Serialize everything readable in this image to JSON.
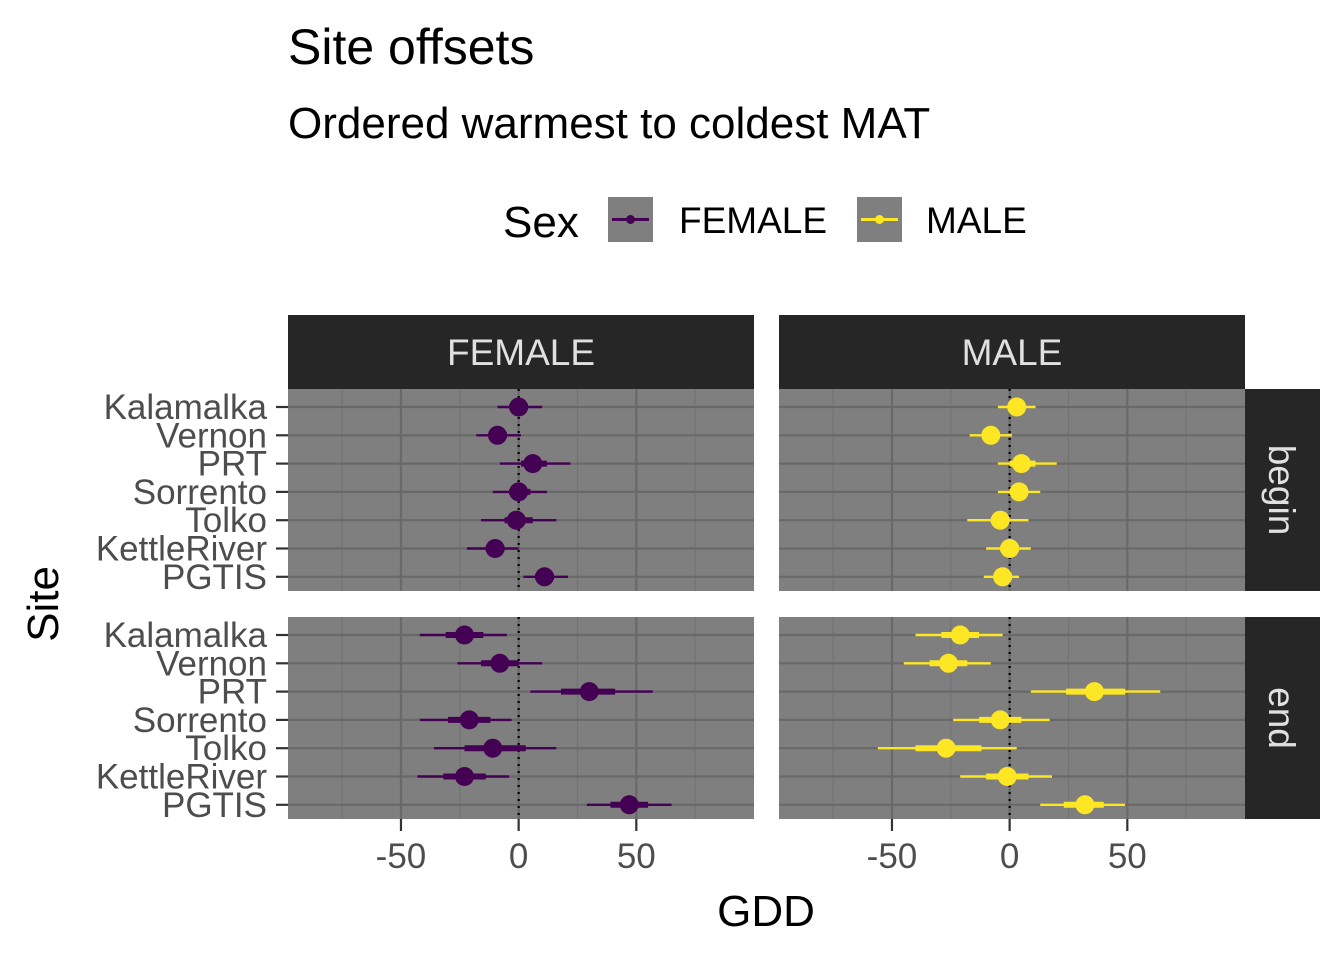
{
  "chart_data": {
    "type": "pointrange",
    "title": "Site offsets",
    "subtitle": "Ordered warmest to coldest MAT",
    "xlabel": "GDD",
    "ylabel": "Site",
    "xlim": [
      -98,
      100
    ],
    "x_ticks": [
      -50,
      0,
      50
    ],
    "x_tick_labels": [
      "-50",
      "0",
      "50"
    ],
    "reference_line_x": 0,
    "sites": [
      "Kalamalka",
      "Vernon",
      "PRT",
      "Sorrento",
      "Tolko",
      "KettleRiver",
      "PGTIS"
    ],
    "facet_columns": [
      "FEMALE",
      "MALE"
    ],
    "facet_rows": [
      "begin",
      "end"
    ],
    "legend": {
      "title": "Sex",
      "position": "top",
      "entries": [
        "FEMALE",
        "MALE"
      ]
    },
    "colors": {
      "FEMALE": "#440154",
      "MALE": "#FDE725",
      "panel_bg": "#7F7F7F",
      "grid_major": "#696969",
      "grid_minor": "#737373",
      "strip_bg": "#262626",
      "strip_text": "#E0E0E0"
    },
    "point_order": [
      "median",
      "inner_lo",
      "inner_hi",
      "outer_lo",
      "outer_hi"
    ],
    "panels": [
      {
        "sex": "FEMALE",
        "event": "begin",
        "points": [
          {
            "site": "Kalamalka",
            "median": 0,
            "inner_lo": -4,
            "inner_hi": 4,
            "outer_lo": -9,
            "outer_hi": 10
          },
          {
            "site": "Vernon",
            "median": -9,
            "inner_lo": -12,
            "inner_hi": -5,
            "outer_lo": -18,
            "outer_hi": 1
          },
          {
            "site": "PRT",
            "median": 6,
            "inner_lo": 1,
            "inner_hi": 12,
            "outer_lo": -8,
            "outer_hi": 22
          },
          {
            "site": "Sorrento",
            "median": 0,
            "inner_lo": -4,
            "inner_hi": 5,
            "outer_lo": -11,
            "outer_hi": 12
          },
          {
            "site": "Tolko",
            "median": -1,
            "inner_lo": -6,
            "inner_hi": 6,
            "outer_lo": -16,
            "outer_hi": 16
          },
          {
            "site": "KettleRiver",
            "median": -10,
            "inner_lo": -14,
            "inner_hi": -6,
            "outer_lo": -22,
            "outer_hi": 0
          },
          {
            "site": "PGTIS",
            "median": 11,
            "inner_lo": 7,
            "inner_hi": 15,
            "outer_lo": 2,
            "outer_hi": 21
          }
        ]
      },
      {
        "sex": "MALE",
        "event": "begin",
        "points": [
          {
            "site": "Kalamalka",
            "median": 3,
            "inner_lo": 0,
            "inner_hi": 6,
            "outer_lo": -5,
            "outer_hi": 11
          },
          {
            "site": "Vernon",
            "median": -8,
            "inner_lo": -11,
            "inner_hi": -5,
            "outer_lo": -17,
            "outer_hi": 1
          },
          {
            "site": "PRT",
            "median": 5,
            "inner_lo": 0,
            "inner_hi": 11,
            "outer_lo": -5,
            "outer_hi": 20
          },
          {
            "site": "Sorrento",
            "median": 4,
            "inner_lo": 0,
            "inner_hi": 7,
            "outer_lo": -5,
            "outer_hi": 13
          },
          {
            "site": "Tolko",
            "median": -4,
            "inner_lo": -8,
            "inner_hi": 0,
            "outer_lo": -18,
            "outer_hi": 8
          },
          {
            "site": "KettleRiver",
            "median": 0,
            "inner_lo": -4,
            "inner_hi": 4,
            "outer_lo": -10,
            "outer_hi": 9
          },
          {
            "site": "PGTIS",
            "median": -3,
            "inner_lo": -6,
            "inner_hi": 1,
            "outer_lo": -11,
            "outer_hi": 4
          }
        ]
      },
      {
        "sex": "FEMALE",
        "event": "end",
        "points": [
          {
            "site": "Kalamalka",
            "median": -23,
            "inner_lo": -31,
            "inner_hi": -15,
            "outer_lo": -42,
            "outer_hi": -5
          },
          {
            "site": "Vernon",
            "median": -8,
            "inner_lo": -16,
            "inner_hi": 0,
            "outer_lo": -26,
            "outer_hi": 10
          },
          {
            "site": "PRT",
            "median": 30,
            "inner_lo": 18,
            "inner_hi": 41,
            "outer_lo": 5,
            "outer_hi": 57
          },
          {
            "site": "Sorrento",
            "median": -21,
            "inner_lo": -30,
            "inner_hi": -12,
            "outer_lo": -42,
            "outer_hi": -3
          },
          {
            "site": "Tolko",
            "median": -11,
            "inner_lo": -23,
            "inner_hi": 3,
            "outer_lo": -36,
            "outer_hi": 16
          },
          {
            "site": "KettleRiver",
            "median": -23,
            "inner_lo": -32,
            "inner_hi": -14,
            "outer_lo": -43,
            "outer_hi": -4
          },
          {
            "site": "PGTIS",
            "median": 47,
            "inner_lo": 39,
            "inner_hi": 55,
            "outer_lo": 29,
            "outer_hi": 65
          }
        ]
      },
      {
        "sex": "MALE",
        "event": "end",
        "points": [
          {
            "site": "Kalamalka",
            "median": -21,
            "inner_lo": -29,
            "inner_hi": -13,
            "outer_lo": -40,
            "outer_hi": -3
          },
          {
            "site": "Vernon",
            "median": -26,
            "inner_lo": -34,
            "inner_hi": -18,
            "outer_lo": -45,
            "outer_hi": -8
          },
          {
            "site": "PRT",
            "median": 36,
            "inner_lo": 24,
            "inner_hi": 49,
            "outer_lo": 9,
            "outer_hi": 64
          },
          {
            "site": "Sorrento",
            "median": -4,
            "inner_lo": -13,
            "inner_hi": 5,
            "outer_lo": -24,
            "outer_hi": 17
          },
          {
            "site": "Tolko",
            "median": -27,
            "inner_lo": -40,
            "inner_hi": -12,
            "outer_lo": -56,
            "outer_hi": 3
          },
          {
            "site": "KettleRiver",
            "median": -1,
            "inner_lo": -10,
            "inner_hi": 8,
            "outer_lo": -21,
            "outer_hi": 18
          },
          {
            "site": "PGTIS",
            "median": 32,
            "inner_lo": 23,
            "inner_hi": 40,
            "outer_lo": 13,
            "outer_hi": 49
          }
        ]
      }
    ]
  }
}
